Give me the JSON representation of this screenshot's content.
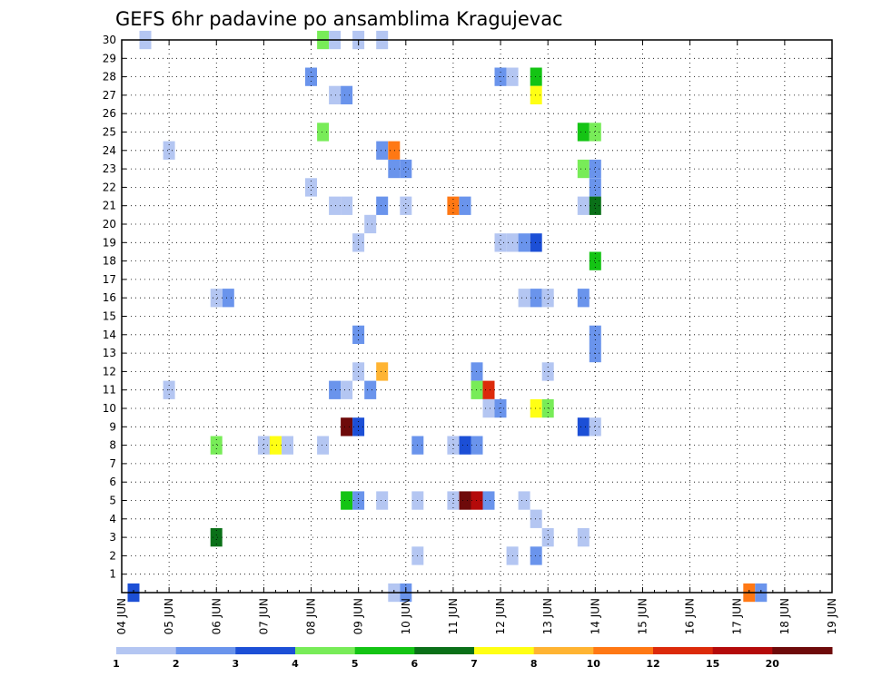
{
  "chart_data": {
    "type": "heatmap",
    "title": "GEFS 6hr padavine po ansamblima Kragujevac",
    "xlabel": "",
    "ylabel": "",
    "x_tick_labels": [
      "04 JUN",
      "05 JUN",
      "06 JUN",
      "07 JUN",
      "08 JUN",
      "09 JUN",
      "10 JUN",
      "11 JUN",
      "12 JUN",
      "13 JUN",
      "14 JUN",
      "15 JUN",
      "16 JUN",
      "17 JUN",
      "18 JUN",
      "19 JUN"
    ],
    "y_tick_labels": [
      "1",
      "2",
      "3",
      "4",
      "5",
      "6",
      "7",
      "8",
      "9",
      "10",
      "11",
      "12",
      "13",
      "14",
      "15",
      "16",
      "17",
      "18",
      "19",
      "20",
      "21",
      "22",
      "23",
      "24",
      "25",
      "26",
      "27",
      "28",
      "29",
      "30"
    ],
    "x_range": [
      0,
      15
    ],
    "y_range": [
      0,
      30
    ],
    "grid": true,
    "value_unit_note": "colour class index 0-11 per colorbar",
    "colorbar": {
      "labels": [
        "1",
        "2",
        "3",
        "4",
        "5",
        "6",
        "7",
        "8",
        "10",
        "12",
        "15",
        "20"
      ],
      "colors": [
        "#b4c6f2",
        "#6a94ec",
        "#1c4fd6",
        "#78ec58",
        "#14c414",
        "#0a7018",
        "#ffff14",
        "#ffb432",
        "#ff7814",
        "#dc2a0a",
        "#b40a0a",
        "#6e0a0a"
      ]
    },
    "cells": [
      {
        "x": 0.5,
        "y": 30,
        "v": 0
      },
      {
        "x": 4.25,
        "y": 30,
        "v": 3
      },
      {
        "x": 4.5,
        "y": 30,
        "v": 0
      },
      {
        "x": 5.0,
        "y": 30,
        "v": 0
      },
      {
        "x": 5.5,
        "y": 30,
        "v": 0
      },
      {
        "x": 4.0,
        "y": 28,
        "v": 1
      },
      {
        "x": 8.0,
        "y": 28,
        "v": 1
      },
      {
        "x": 8.25,
        "y": 28,
        "v": 0
      },
      {
        "x": 8.75,
        "y": 28,
        "v": 4
      },
      {
        "x": 8.75,
        "y": 27,
        "v": 6
      },
      {
        "x": 4.5,
        "y": 27,
        "v": 0
      },
      {
        "x": 4.75,
        "y": 27,
        "v": 1
      },
      {
        "x": 4.25,
        "y": 25,
        "v": 3
      },
      {
        "x": 9.75,
        "y": 25,
        "v": 4
      },
      {
        "x": 10.0,
        "y": 25,
        "v": 3
      },
      {
        "x": 1.0,
        "y": 24,
        "v": 0
      },
      {
        "x": 5.5,
        "y": 24,
        "v": 1
      },
      {
        "x": 5.75,
        "y": 24,
        "v": 8
      },
      {
        "x": 5.75,
        "y": 23,
        "v": 1
      },
      {
        "x": 6.0,
        "y": 23,
        "v": 1
      },
      {
        "x": 9.75,
        "y": 23,
        "v": 3
      },
      {
        "x": 10.0,
        "y": 23,
        "v": 1
      },
      {
        "x": 4.0,
        "y": 22,
        "v": 0
      },
      {
        "x": 10.0,
        "y": 22,
        "v": 1
      },
      {
        "x": 4.5,
        "y": 21,
        "v": 0
      },
      {
        "x": 4.75,
        "y": 21,
        "v": 0
      },
      {
        "x": 5.5,
        "y": 21,
        "v": 1
      },
      {
        "x": 6.0,
        "y": 21,
        "v": 0
      },
      {
        "x": 7.0,
        "y": 21,
        "v": 8
      },
      {
        "x": 7.25,
        "y": 21,
        "v": 1
      },
      {
        "x": 9.75,
        "y": 21,
        "v": 0
      },
      {
        "x": 10.0,
        "y": 21,
        "v": 5
      },
      {
        "x": 5.25,
        "y": 20,
        "v": 0
      },
      {
        "x": 5.0,
        "y": 19,
        "v": 0
      },
      {
        "x": 8.0,
        "y": 19,
        "v": 0
      },
      {
        "x": 8.25,
        "y": 19,
        "v": 0
      },
      {
        "x": 8.5,
        "y": 19,
        "v": 1
      },
      {
        "x": 8.75,
        "y": 19,
        "v": 2
      },
      {
        "x": 10.0,
        "y": 18,
        "v": 4
      },
      {
        "x": 2.0,
        "y": 16,
        "v": 0
      },
      {
        "x": 2.25,
        "y": 16,
        "v": 1
      },
      {
        "x": 8.5,
        "y": 16,
        "v": 0
      },
      {
        "x": 8.75,
        "y": 16,
        "v": 1
      },
      {
        "x": 9.0,
        "y": 16,
        "v": 0
      },
      {
        "x": 9.75,
        "y": 16,
        "v": 1
      },
      {
        "x": 5.0,
        "y": 14,
        "v": 1
      },
      {
        "x": 10.0,
        "y": 14,
        "v": 1
      },
      {
        "x": 10.0,
        "y": 13,
        "v": 1
      },
      {
        "x": 5.0,
        "y": 12,
        "v": 0
      },
      {
        "x": 5.5,
        "y": 12,
        "v": 7
      },
      {
        "x": 7.5,
        "y": 12,
        "v": 1
      },
      {
        "x": 9.0,
        "y": 12,
        "v": 0
      },
      {
        "x": 1.0,
        "y": 11,
        "v": 0
      },
      {
        "x": 4.5,
        "y": 11,
        "v": 1
      },
      {
        "x": 4.75,
        "y": 11,
        "v": 0
      },
      {
        "x": 5.25,
        "y": 11,
        "v": 1
      },
      {
        "x": 7.5,
        "y": 11,
        "v": 3
      },
      {
        "x": 7.75,
        "y": 11,
        "v": 9
      },
      {
        "x": 7.75,
        "y": 10,
        "v": 0
      },
      {
        "x": 8.0,
        "y": 10,
        "v": 1
      },
      {
        "x": 8.75,
        "y": 10,
        "v": 6
      },
      {
        "x": 9.0,
        "y": 10,
        "v": 3
      },
      {
        "x": 4.75,
        "y": 9,
        "v": 11
      },
      {
        "x": 5.0,
        "y": 9,
        "v": 2
      },
      {
        "x": 9.75,
        "y": 9,
        "v": 2
      },
      {
        "x": 10.0,
        "y": 9,
        "v": 0
      },
      {
        "x": 2.0,
        "y": 8,
        "v": 3
      },
      {
        "x": 3.0,
        "y": 8,
        "v": 0
      },
      {
        "x": 3.25,
        "y": 8,
        "v": 6
      },
      {
        "x": 3.5,
        "y": 8,
        "v": 0
      },
      {
        "x": 4.25,
        "y": 8,
        "v": 0
      },
      {
        "x": 6.25,
        "y": 8,
        "v": 1
      },
      {
        "x": 7.0,
        "y": 8,
        "v": 0
      },
      {
        "x": 7.25,
        "y": 8,
        "v": 2
      },
      {
        "x": 7.5,
        "y": 8,
        "v": 1
      },
      {
        "x": 4.75,
        "y": 5,
        "v": 4
      },
      {
        "x": 5.0,
        "y": 5,
        "v": 1
      },
      {
        "x": 5.5,
        "y": 5,
        "v": 0
      },
      {
        "x": 6.25,
        "y": 5,
        "v": 0
      },
      {
        "x": 7.0,
        "y": 5,
        "v": 0
      },
      {
        "x": 7.25,
        "y": 5,
        "v": 11
      },
      {
        "x": 7.5,
        "y": 5,
        "v": 10
      },
      {
        "x": 7.75,
        "y": 5,
        "v": 1
      },
      {
        "x": 8.5,
        "y": 5,
        "v": 0
      },
      {
        "x": 8.75,
        "y": 4,
        "v": 0
      },
      {
        "x": 2.0,
        "y": 3,
        "v": 5
      },
      {
        "x": 9.0,
        "y": 3,
        "v": 0
      },
      {
        "x": 9.75,
        "y": 3,
        "v": 0
      },
      {
        "x": 6.25,
        "y": 2,
        "v": 0
      },
      {
        "x": 8.25,
        "y": 2,
        "v": 0
      },
      {
        "x": 8.75,
        "y": 2,
        "v": 1
      },
      {
        "x": 0.25,
        "y": 0,
        "v": 2
      },
      {
        "x": 5.75,
        "y": 0,
        "v": 0
      },
      {
        "x": 6.0,
        "y": 0,
        "v": 1
      },
      {
        "x": 13.25,
        "y": 0,
        "v": 8
      },
      {
        "x": 13.5,
        "y": 0,
        "v": 1
      }
    ]
  }
}
